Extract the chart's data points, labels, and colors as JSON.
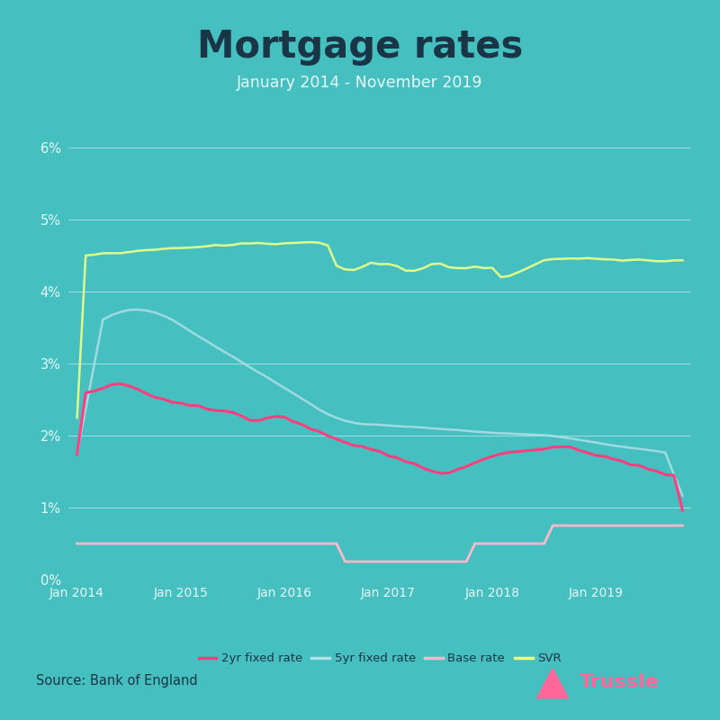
{
  "title": "Mortgage rates",
  "subtitle": "January 2014 - November 2019",
  "source": "Source: Bank of England",
  "background_color": "#45BFBF",
  "title_color": "#1a3545",
  "subtitle_color": "#e8f8f8",
  "grid_color": "#ffffff",
  "tick_label_color": "#e8f8f8",
  "source_color": "#1a3545",
  "ylim": [
    0,
    6
  ],
  "yticks": [
    0,
    1,
    2,
    3,
    4,
    5,
    6
  ],
  "ytick_labels": [
    "0%",
    "1%",
    "2%",
    "3%",
    "4%",
    "5%",
    "6%"
  ],
  "xtick_labels": [
    "Jan 2014",
    "Jan 2015",
    "Jan 2016",
    "Jan 2017",
    "Jan 2018",
    "Jan 2019"
  ],
  "line_2yr_color": "#FF3D7F",
  "line_5yr_color": "#b0e0e8",
  "line_base_color": "#FFB8CC",
  "line_svr_color": "#e8ff88",
  "legend_labels": [
    "2yr fixed rate",
    "5yr fixed rate",
    "Base rate",
    "SVR"
  ],
  "trussle_color": "#FF6699",
  "n_points": 71
}
